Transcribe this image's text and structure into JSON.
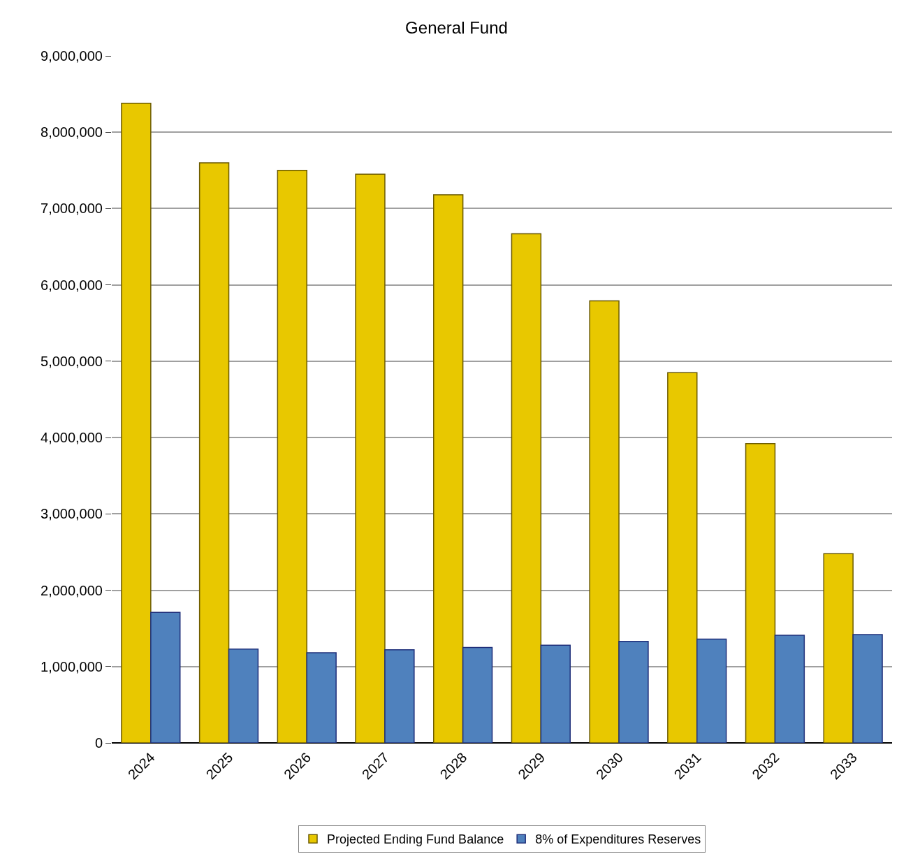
{
  "chart_data": {
    "type": "bar",
    "title": "General Fund",
    "categories": [
      "2024",
      "2025",
      "2026",
      "2027",
      "2028",
      "2029",
      "2030",
      "2031",
      "2032",
      "2033"
    ],
    "series": [
      {
        "name": "Projected Ending Fund Balance",
        "color": "#e8c800",
        "values": [
          8380000,
          7600000,
          7500000,
          7450000,
          7180000,
          6670000,
          5790000,
          4850000,
          3920000,
          2480000
        ]
      },
      {
        "name": "8% of Expenditures Reserves",
        "color": "#4f81bd",
        "values": [
          1710000,
          1230000,
          1180000,
          1220000,
          1250000,
          1280000,
          1330000,
          1360000,
          1410000,
          1420000
        ]
      }
    ],
    "ylim": [
      0,
      9000000
    ],
    "yticks": [
      {
        "value": 0,
        "label": "0"
      },
      {
        "value": 1000000,
        "label": "1,000,000"
      },
      {
        "value": 2000000,
        "label": "2,000,000"
      },
      {
        "value": 3000000,
        "label": "3,000,000"
      },
      {
        "value": 4000000,
        "label": "4,000,000"
      },
      {
        "value": 5000000,
        "label": "5,000,000"
      },
      {
        "value": 6000000,
        "label": "6,000,000"
      },
      {
        "value": 7000000,
        "label": "7,000,000"
      },
      {
        "value": 8000000,
        "label": "8,000,000"
      },
      {
        "value": 9000000,
        "label": "9,000,000"
      }
    ],
    "grid": "y",
    "legend": "bottom"
  }
}
